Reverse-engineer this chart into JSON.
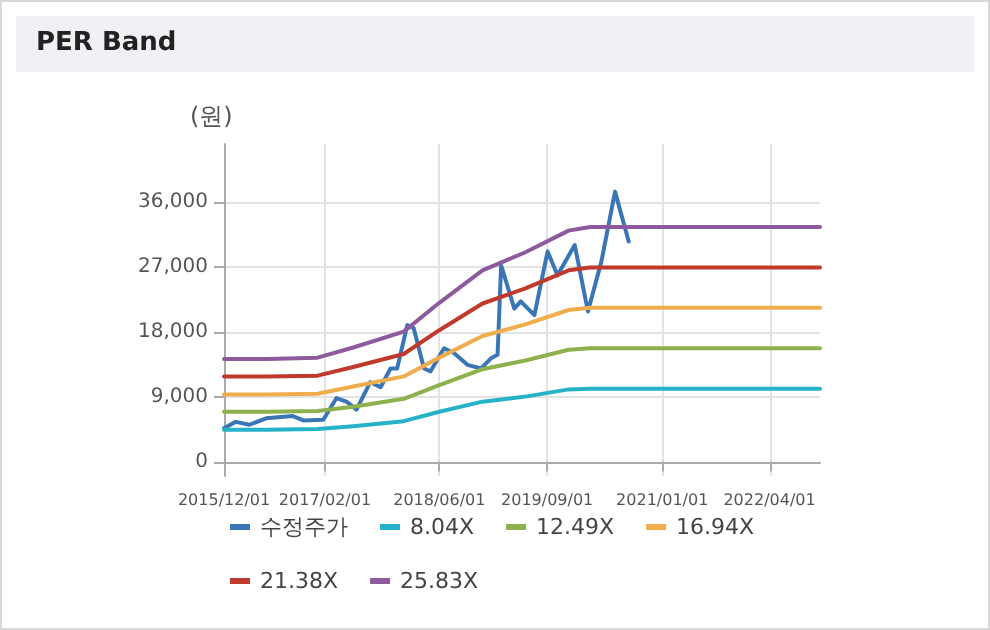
{
  "chart_data": {
    "type": "line",
    "title": "PER Band",
    "ylabel": "(원)",
    "xlim": [
      "2015-12-01",
      "2022-11-01"
    ],
    "xticks": [
      {
        "value": "2015-12-01",
        "label": "2015/12/01"
      },
      {
        "value": "2017-02-01",
        "label": "2017/02/01"
      },
      {
        "value": "2018-06-01",
        "label": "2018/06/01"
      },
      {
        "value": "2019-09-01",
        "label": "2019/09/01"
      },
      {
        "value": "2021-01-01",
        "label": "2021/01/01"
      },
      {
        "value": "2022-04-01",
        "label": "2022/04/01"
      }
    ],
    "ylim": [
      -2000,
      44000
    ],
    "yticks": [
      {
        "value": 0,
        "label": "0"
      },
      {
        "value": 9000,
        "label": "9,000"
      },
      {
        "value": 18000,
        "label": "18,000"
      },
      {
        "value": 27000,
        "label": "27,000"
      },
      {
        "value": 36000,
        "label": "36,000"
      }
    ],
    "grid": true,
    "legend": "bottom",
    "marker": "none",
    "line_style": "solid",
    "series": [
      {
        "name": "수정주가",
        "color": "#3a76b5",
        "x": [
          "2015-12-01",
          "2016-01-20",
          "2016-03-18",
          "2016-05-28",
          "2016-09-18",
          "2016-11-01",
          "2017-01-25",
          "2017-03-22",
          "2017-05-03",
          "2017-06-15",
          "2017-08-12",
          "2017-09-25",
          "2017-11-06",
          "2017-12-04",
          "2018-01-16",
          "2018-02-12",
          "2018-03-28",
          "2018-04-25",
          "2018-06-21",
          "2018-08-03",
          "2018-09-28",
          "2018-11-25",
          "2019-01-06",
          "2019-02-03",
          "2019-02-18",
          "2019-04-15",
          "2019-05-12",
          "2019-07-09",
          "2019-09-03",
          "2019-10-15",
          "2019-12-27",
          "2020-02-21",
          "2020-04-18",
          "2020-06-15",
          "2020-08-12"
        ],
        "values": [
          4600,
          5500,
          5100,
          6000,
          6300,
          5700,
          5800,
          8800,
          8300,
          7200,
          11000,
          10300,
          12900,
          12900,
          18900,
          18500,
          12900,
          12500,
          15700,
          15000,
          13400,
          12900,
          14300,
          14800,
          27200,
          21200,
          22200,
          20300,
          29100,
          25800,
          30000,
          20800,
          27700,
          37400,
          30500
        ]
      },
      {
        "name": "8.04X",
        "color": "#27b3c7",
        "x": [
          "2015-12-01",
          "2016-06-01",
          "2017-01-01",
          "2017-06-01",
          "2018-01-01",
          "2018-06-01",
          "2018-12-01",
          "2019-06-01",
          "2019-12-01",
          "2020-03-01",
          "2022-11-01"
        ],
        "values": [
          4400,
          4400,
          4500,
          4900,
          5600,
          6900,
          8300,
          9000,
          10000,
          10100,
          10100
        ]
      },
      {
        "name": "12.49X",
        "color": "#8db14d",
        "x": [
          "2015-12-01",
          "2016-06-01",
          "2017-01-01",
          "2017-06-01",
          "2018-01-01",
          "2018-06-01",
          "2018-12-01",
          "2019-06-01",
          "2019-12-01",
          "2020-03-01",
          "2022-11-01"
        ],
        "values": [
          6900,
          6900,
          7000,
          7600,
          8700,
          10600,
          12800,
          14000,
          15500,
          15700,
          15700
        ]
      },
      {
        "name": "16.94X",
        "color": "#f0ad4e",
        "x": [
          "2015-12-01",
          "2016-06-01",
          "2017-01-01",
          "2017-06-01",
          "2018-01-01",
          "2018-06-01",
          "2018-12-01",
          "2019-06-01",
          "2019-12-01",
          "2020-03-01",
          "2022-11-01"
        ],
        "values": [
          9300,
          9300,
          9400,
          10400,
          11800,
          14400,
          17400,
          19000,
          21000,
          21300,
          21300
        ]
      },
      {
        "name": "21.38X",
        "color": "#c0392b",
        "x": [
          "2015-12-01",
          "2016-06-01",
          "2017-01-01",
          "2017-06-01",
          "2018-01-01",
          "2018-06-01",
          "2018-12-01",
          "2019-06-01",
          "2019-12-01",
          "2020-03-01",
          "2022-11-01"
        ],
        "values": [
          11800,
          11800,
          11900,
          13100,
          14900,
          18200,
          21900,
          24000,
          26500,
          26900,
          26900
        ]
      },
      {
        "name": "25.83X",
        "color": "#8e5a9e",
        "x": [
          "2015-12-01",
          "2016-06-01",
          "2017-01-01",
          "2017-06-01",
          "2018-01-01",
          "2018-06-01",
          "2018-12-01",
          "2019-06-01",
          "2019-12-01",
          "2020-03-01",
          "2022-11-01"
        ],
        "values": [
          14200,
          14200,
          14400,
          15800,
          18000,
          22000,
          26500,
          29000,
          32000,
          32500,
          32500
        ]
      }
    ]
  }
}
